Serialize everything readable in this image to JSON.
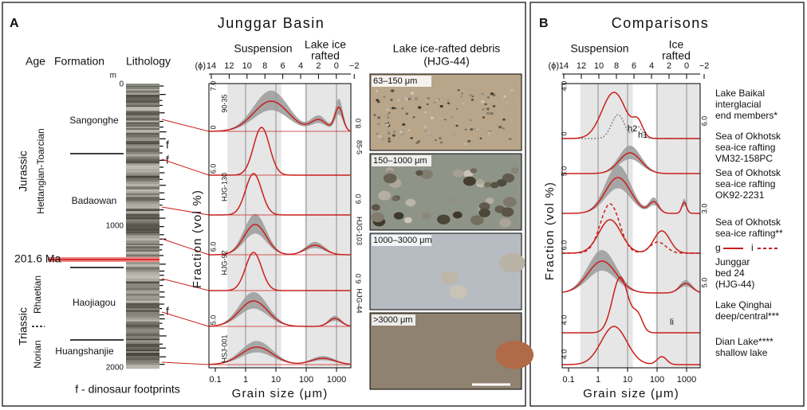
{
  "panel_a": {
    "label": "A",
    "title": "Junggar Basin",
    "headers": [
      "Age",
      "Formation",
      "Lithology"
    ],
    "depth_unit": "m",
    "depth_ticks": [
      "0",
      "1000",
      "2000"
    ],
    "periods": [
      "Jurassic",
      "Triassic"
    ],
    "stages": [
      "Hettangian-Toarcian",
      "Rhaetian",
      "Norian"
    ],
    "boundary": "201.6 Ma",
    "formations": [
      "Sangonghe",
      "Badaowan",
      "Haojiagou",
      "Huangshanjie"
    ],
    "footprint_marks": [
      "f",
      "f",
      "f"
    ],
    "footnote": "f - dinosaur footprints",
    "grain_plot": {
      "regions": [
        "Suspension",
        "Lake ice",
        "rafted"
      ],
      "phi_label": "(ϕ)",
      "phi_ticks": [
        "14",
        "12",
        "10",
        "8",
        "6",
        "4",
        "2",
        "0",
        "−2"
      ],
      "y_label": "Fraction (vol %)",
      "x_label": "Grain size (μm)",
      "x_ticks": [
        "0.1",
        "1",
        "10",
        "100",
        "1000"
      ],
      "samples": [
        "90-35",
        "85-5",
        "HJG-130",
        "HJG-103",
        "HJG-92",
        "HJG-44",
        "HSJ-001"
      ],
      "scale_labels": [
        "7.0",
        "0",
        "8.0",
        "6.0",
        "6.0",
        "6.0",
        "6.0",
        "5.0"
      ]
    },
    "photos": {
      "title": "Lake ice-rafted debris",
      "sample": "(HJG-44)",
      "sizes": [
        "63–150 μm",
        "150–1000 μm",
        "1000–3000 μm",
        ">3000 μm"
      ]
    }
  },
  "panel_b": {
    "label": "B",
    "title": "Comparisons",
    "regions": [
      "Suspension",
      "Ice",
      "rafted"
    ],
    "phi_label": "(ϕ)",
    "phi_ticks": [
      "14",
      "12",
      "10",
      "8",
      "6",
      "4",
      "2",
      "0",
      "−2"
    ],
    "y_label": "Fraction (vol %)",
    "x_label": "Grain size (μm)",
    "x_ticks": [
      "0.1",
      "1",
      "10",
      "100",
      "1000"
    ],
    "scale_labels": [
      "4.0",
      "0",
      "6.0",
      "5.0",
      "3.0",
      "6.0",
      "5.0",
      "4.0",
      "4.0"
    ],
    "annotations": [
      "h2",
      "h1",
      "li"
    ],
    "legend": [
      "g",
      "i"
    ],
    "entries": [
      [
        "Lake Baikal",
        "interglacial",
        "end members*"
      ],
      [
        "Sea of Okhotsk",
        "sea-ice rafting",
        "VM32-158PC"
      ],
      [
        "Sea of Okhotsk",
        "sea-ice rafting",
        "OK92-2231"
      ],
      [
        "Sea of Okhotsk",
        "sea-ice rafting**"
      ],
      [
        "Junggar",
        "bed 24",
        "(HJG-44)"
      ],
      [
        "Lake Qinghai",
        "deep/central***"
      ],
      [
        "Dian Lake****",
        "shallow lake"
      ]
    ]
  }
}
